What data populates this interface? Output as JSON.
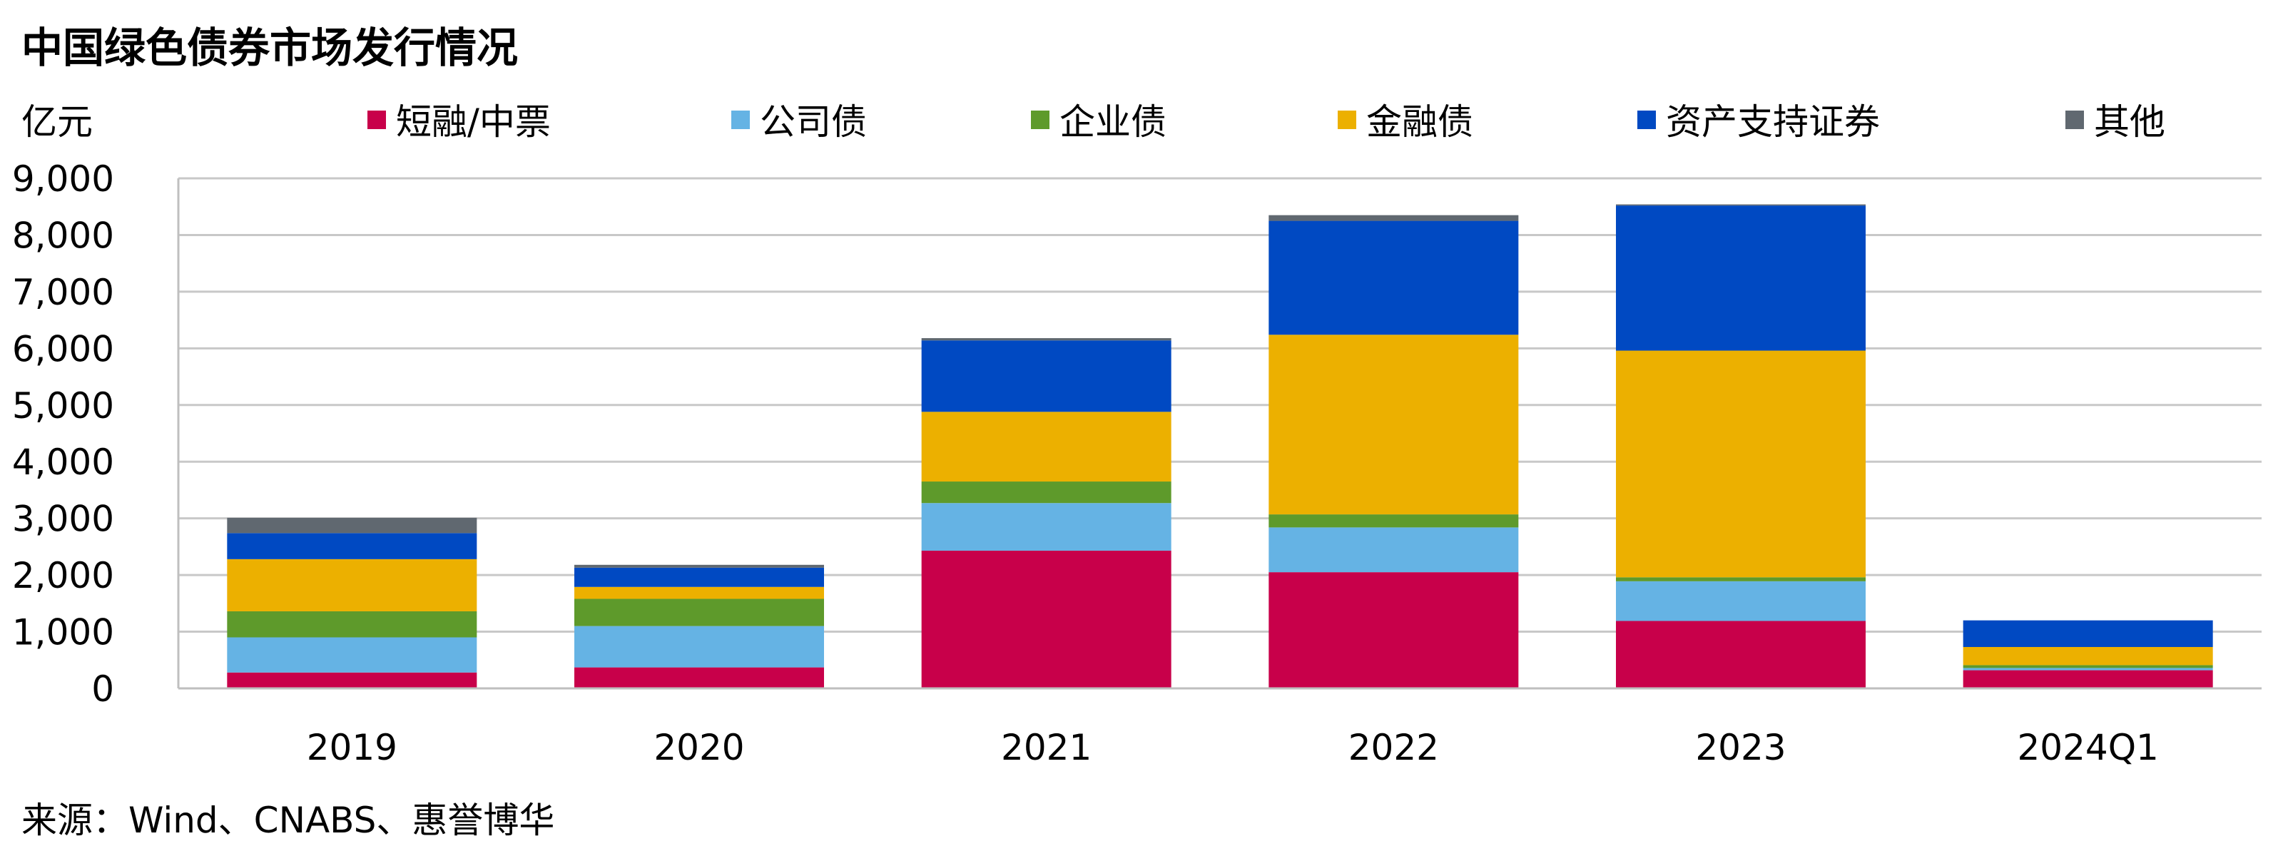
{
  "title": "中国绿色债券市场发行情况",
  "source": "来源：Wind、CNABS、惠誉博华",
  "colors": {
    "background": "#ffffff",
    "grid": "#c8c8c8",
    "axis": "#bfbfbf",
    "text": "#000000"
  },
  "chart_data": {
    "type": "bar",
    "stacked": true,
    "title": "中国绿色债券市场发行情况",
    "ylabel": "亿元",
    "xlabel": "",
    "ylim": [
      0,
      9000
    ],
    "ytick_step": 1000,
    "yticks": [
      "0",
      "1,000",
      "2,000",
      "3,000",
      "4,000",
      "5,000",
      "6,000",
      "7,000",
      "8,000",
      "9,000"
    ],
    "grid": true,
    "legend_position": "top",
    "categories": [
      "2019",
      "2020",
      "2021",
      "2022",
      "2023",
      "2024Q1"
    ],
    "series": [
      {
        "name": "短融/中票",
        "color": "#c8004a",
        "values": [
          280,
          370,
          2430,
          2050,
          1190,
          320
        ]
      },
      {
        "name": "公司债",
        "color": "#65b3e4",
        "values": [
          620,
          730,
          840,
          790,
          700,
          40
        ]
      },
      {
        "name": "企业债",
        "color": "#5e9a2b",
        "values": [
          460,
          480,
          380,
          230,
          70,
          50
        ]
      },
      {
        "name": "金融债",
        "color": "#ecb000",
        "values": [
          920,
          210,
          1230,
          3170,
          4000,
          320
        ]
      },
      {
        "name": "资产支持证券",
        "color": "#0049c2",
        "values": [
          460,
          340,
          1260,
          2010,
          2560,
          470
        ]
      },
      {
        "name": "其他",
        "color": "#606870",
        "values": [
          270,
          50,
          40,
          100,
          20,
          0
        ]
      }
    ]
  }
}
